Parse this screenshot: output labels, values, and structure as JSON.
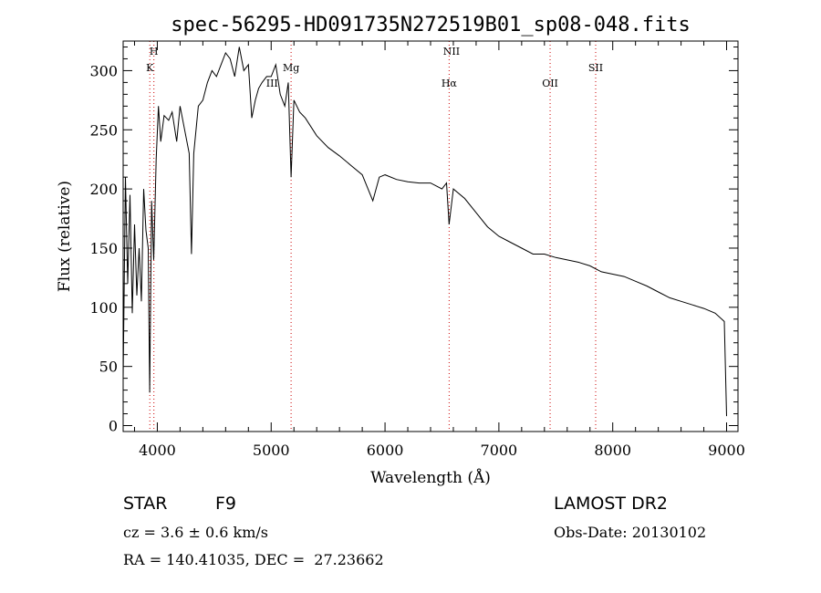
{
  "chart_data": {
    "type": "line",
    "title": "spec-56295-HD091735N272519B01_sp08-048.fits",
    "xlabel": "Wavelength (Å)",
    "ylabel": "Flux (relative)",
    "xlim": [
      3700,
      9100
    ],
    "ylim": [
      -5,
      325
    ],
    "xticks": [
      4000,
      5000,
      6000,
      7000,
      8000,
      9000
    ],
    "yticks": [
      0,
      50,
      100,
      150,
      200,
      250,
      300
    ],
    "grid": false,
    "series": [
      {
        "x": [
          3700,
          3720,
          3740,
          3760,
          3780,
          3800,
          3820,
          3840,
          3860,
          3880,
          3900,
          3920,
          3933,
          3950,
          3968,
          3990,
          4010,
          4030,
          4060,
          4100,
          4130,
          4170,
          4200,
          4240,
          4280,
          4300,
          4320,
          4340,
          4360,
          4400,
          4440,
          4480,
          4520,
          4560,
          4600,
          4640,
          4680,
          4720,
          4760,
          4800,
          4830,
          4861,
          4890,
          4920,
          4960,
          5000,
          5040,
          5080,
          5120,
          5150,
          5175,
          5200,
          5250,
          5300,
          5400,
          5500,
          5600,
          5700,
          5800,
          5893,
          5950,
          6000,
          6100,
          6200,
          6300,
          6400,
          6500,
          6540,
          6563,
          6600,
          6700,
          6800,
          6900,
          7000,
          7100,
          7200,
          7300,
          7400,
          7500,
          7600,
          7700,
          7800,
          7900,
          8000,
          8100,
          8200,
          8300,
          8400,
          8500,
          8600,
          8700,
          8800,
          8900,
          8980,
          9000
        ],
        "y": [
          40,
          210,
          120,
          195,
          95,
          170,
          110,
          150,
          105,
          200,
          165,
          150,
          28,
          190,
          140,
          225,
          270,
          240,
          262,
          258,
          265,
          240,
          270,
          250,
          230,
          145,
          230,
          250,
          270,
          275,
          290,
          300,
          295,
          305,
          315,
          310,
          295,
          320,
          300,
          305,
          260,
          275,
          285,
          290,
          295,
          295,
          305,
          280,
          270,
          290,
          210,
          275,
          265,
          260,
          245,
          235,
          228,
          220,
          212,
          190,
          210,
          212,
          208,
          206,
          205,
          205,
          200,
          205,
          170,
          200,
          192,
          180,
          168,
          160,
          155,
          150,
          145,
          145,
          142,
          140,
          138,
          135,
          130,
          128,
          126,
          122,
          118,
          113,
          108,
          105,
          102,
          99,
          95,
          88,
          8
        ]
      }
    ],
    "annotations": [
      {
        "label": "H",
        "x": 3970
      },
      {
        "label": "K",
        "x": 3934
      },
      {
        "label": "Mg",
        "x": 5175
      },
      {
        "label": "NII",
        "x": 6584
      },
      {
        "label": "Hα",
        "x": 6563
      },
      {
        "label": "OII",
        "x": 7450
      },
      {
        "label": "SII",
        "x": 7850
      },
      {
        "label": "III",
        "x": 5008
      }
    ]
  },
  "info": {
    "object_class": "STAR",
    "subclass": "F9",
    "survey": "LAMOST DR2",
    "cz": "cz = 3.6 ± 0.6 km/s",
    "obs_date": "Obs-Date: 20130102",
    "radec": "RA = 140.41035, DEC =  27.23662"
  },
  "colors": {
    "line": "#000000",
    "marker_lines": "#cc0000",
    "background": "#ffffff"
  }
}
